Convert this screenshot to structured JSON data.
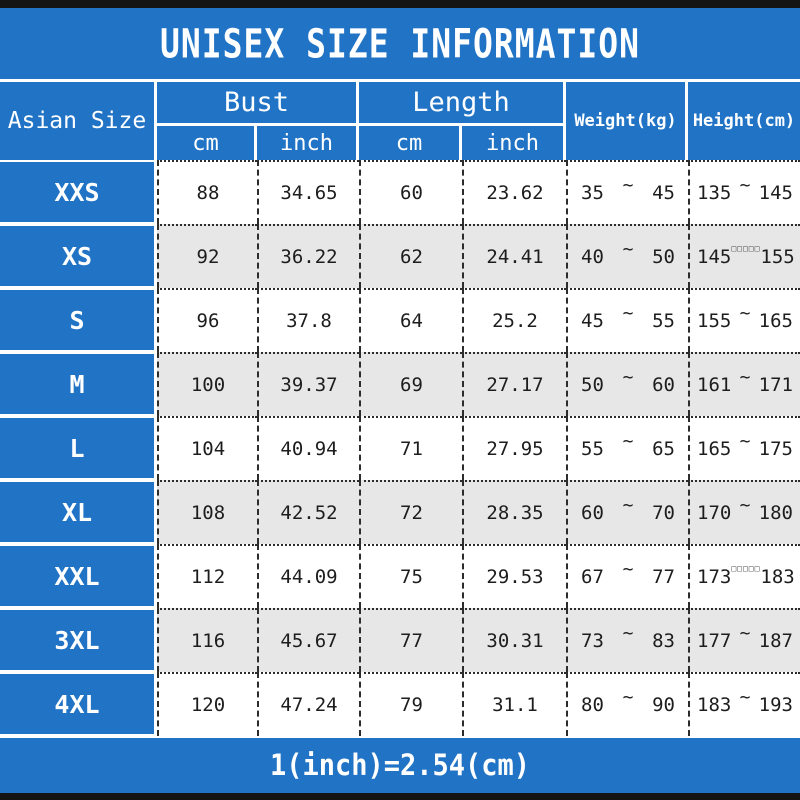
{
  "title": "UNISEX SIZE INFORMATION",
  "footer": "1(inch)=2.54(cm)",
  "colors": {
    "accent_blue": "#2173c5",
    "row_alt_gray": "#e7e7e7",
    "frame_black": "#141414"
  },
  "header": {
    "asian_size": "Asian Size",
    "bust": "Bust",
    "length": "Length",
    "weight": "Weight(kg)",
    "height": "Height(cm)",
    "bust_cm": "cm",
    "bust_inch": "inch",
    "length_cm": "cm",
    "length_inch": "inch"
  },
  "rows": [
    {
      "size": "XXS",
      "bust_cm": "88",
      "bust_inch": "34.65",
      "length_cm": "60",
      "length_inch": "23.62",
      "weight_min": "35",
      "weight_sep": "~",
      "weight_max": "45",
      "height_min": "135",
      "height_sep": "~",
      "height_max": "145"
    },
    {
      "size": "XS",
      "bust_cm": "92",
      "bust_inch": "36.22",
      "length_cm": "62",
      "length_inch": "24.41",
      "weight_min": "40",
      "weight_sep": "~",
      "weight_max": "50",
      "height_min": "145",
      "height_sep": "□□□□□",
      "height_max": "155"
    },
    {
      "size": "S",
      "bust_cm": "96",
      "bust_inch": "37.8",
      "length_cm": "64",
      "length_inch": "25.2",
      "weight_min": "45",
      "weight_sep": "~",
      "weight_max": "55",
      "height_min": "155",
      "height_sep": "~",
      "height_max": "165"
    },
    {
      "size": "M",
      "bust_cm": "100",
      "bust_inch": "39.37",
      "length_cm": "69",
      "length_inch": "27.17",
      "weight_min": "50",
      "weight_sep": "~",
      "weight_max": "60",
      "height_min": "161",
      "height_sep": "~",
      "height_max": "171"
    },
    {
      "size": "L",
      "bust_cm": "104",
      "bust_inch": "40.94",
      "length_cm": "71",
      "length_inch": "27.95",
      "weight_min": "55",
      "weight_sep": "~",
      "weight_max": "65",
      "height_min": "165",
      "height_sep": "~",
      "height_max": "175"
    },
    {
      "size": "XL",
      "bust_cm": "108",
      "bust_inch": "42.52",
      "length_cm": "72",
      "length_inch": "28.35",
      "weight_min": "60",
      "weight_sep": "~",
      "weight_max": "70",
      "height_min": "170",
      "height_sep": "~",
      "height_max": "180"
    },
    {
      "size": "XXL",
      "bust_cm": "112",
      "bust_inch": "44.09",
      "length_cm": "75",
      "length_inch": "29.53",
      "weight_min": "67",
      "weight_sep": "~",
      "weight_max": "77",
      "height_min": "173",
      "height_sep": "□□□□□",
      "height_max": "183"
    },
    {
      "size": "3XL",
      "bust_cm": "116",
      "bust_inch": "45.67",
      "length_cm": "77",
      "length_inch": "30.31",
      "weight_min": "73",
      "weight_sep": "~",
      "weight_max": "83",
      "height_min": "177",
      "height_sep": "~",
      "height_max": "187"
    },
    {
      "size": "4XL",
      "bust_cm": "120",
      "bust_inch": "47.24",
      "length_cm": "79",
      "length_inch": "31.1",
      "weight_min": "80",
      "weight_sep": "~",
      "weight_max": "90",
      "height_min": "183",
      "height_sep": "~",
      "height_max": "193"
    }
  ]
}
